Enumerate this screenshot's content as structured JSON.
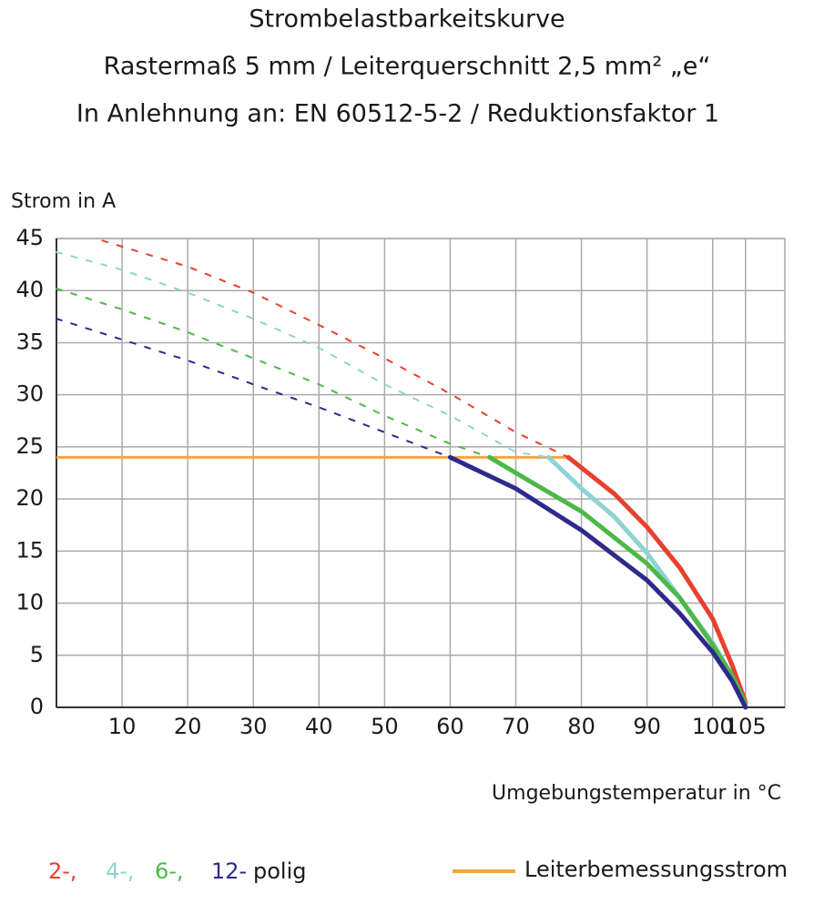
{
  "chart_data": {
    "type": "line",
    "title": "Strombelastbarkeitskurve",
    "subtitles": [
      "Rastermaß 5 mm / Leiterquerschnitt 2,5 mm² „e“",
      "In Anlehnung an: EN 60512-5-2 / Reduktionsfaktor 1"
    ],
    "y_label": "Strom in A",
    "x_label": "Umgebungstemperatur in °C",
    "xlim": [
      0,
      111
    ],
    "ylim": [
      0,
      45
    ],
    "xticks": [
      10,
      20,
      30,
      40,
      50,
      60,
      70,
      80,
      90,
      100,
      105
    ],
    "yticks": [
      0,
      5,
      10,
      15,
      20,
      25,
      30,
      35,
      40,
      45
    ],
    "grid": true,
    "legend_suffix": "polig",
    "series": [
      {
        "name": "2-,",
        "color": "#e8402f",
        "segments": [
          {
            "style": "dashed",
            "x": [
              7,
              20,
              30,
              40,
              50,
              60,
              70,
              78
            ],
            "values": [
              44.8,
              42.3,
              39.8,
              36.7,
              33.5,
              30.1,
              26.4,
              24
            ]
          },
          {
            "style": "solid",
            "x": [
              78,
              80,
              85,
              90,
              95,
              100,
              103,
              105
            ],
            "values": [
              24,
              23,
              20.5,
              17.3,
              13.4,
              8.5,
              4,
              0.5
            ]
          }
        ]
      },
      {
        "name": "4-,",
        "color": "#8fd3d3",
        "segments": [
          {
            "style": "dashed",
            "x": [
              0,
              10,
              20,
              30,
              40,
              50,
              60,
              70,
              75
            ],
            "values": [
              43.7,
              42,
              39.8,
              37.3,
              34.5,
              31,
              28,
              24.5,
              24
            ]
          },
          {
            "style": "solid",
            "x": [
              75,
              80,
              85,
              90,
              95,
              100,
              103,
              105
            ],
            "values": [
              24,
              21,
              18.3,
              14.8,
              10.5,
              6.2,
              3,
              0.3
            ]
          }
        ]
      },
      {
        "name": "6-,",
        "color": "#4cb848",
        "segments": [
          {
            "style": "dashed",
            "x": [
              0,
              10,
              20,
              30,
              40,
              50,
              60,
              66
            ],
            "values": [
              40.2,
              38.2,
              36,
              33.5,
              31,
              28,
              25.3,
              24
            ]
          },
          {
            "style": "solid",
            "x": [
              66,
              70,
              80,
              90,
              95,
              100,
              103,
              105
            ],
            "values": [
              24,
              22.5,
              18.8,
              13.8,
              10.5,
              6,
              3,
              0.3
            ]
          }
        ]
      },
      {
        "name": "12-",
        "color": "#2e2a8c",
        "segments": [
          {
            "style": "dashed",
            "x": [
              0,
              10,
              20,
              30,
              40,
              50,
              60
            ],
            "values": [
              37.3,
              35.3,
              33.3,
              31,
              28.8,
              26.4,
              24
            ]
          },
          {
            "style": "solid",
            "x": [
              60,
              70,
              80,
              90,
              95,
              100,
              103,
              105
            ],
            "values": [
              24,
              21,
              17,
              12.2,
              9,
              5.3,
              2.5,
              0
            ]
          }
        ]
      }
    ],
    "reference": {
      "name": "Leiterbemessungsstrom",
      "color": "#f7a540",
      "x": [
        0,
        78
      ],
      "values": [
        24,
        24
      ]
    }
  }
}
